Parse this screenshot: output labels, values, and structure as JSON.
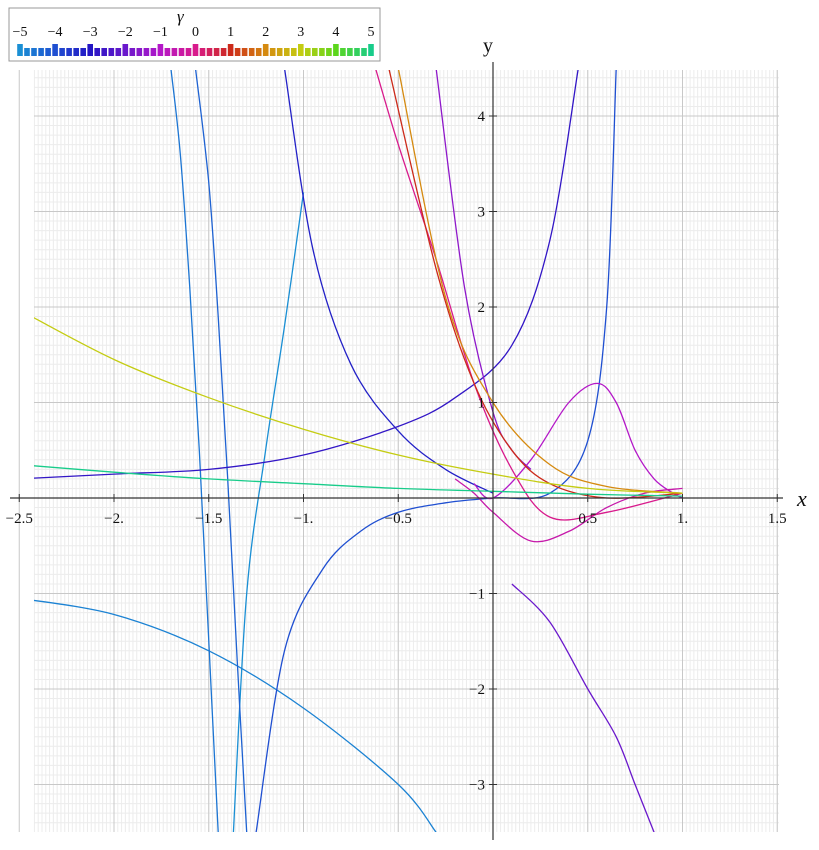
{
  "chart_data": {
    "type": "line",
    "xlabel": "x",
    "ylabel": "y",
    "xlim": [
      -2.5,
      1.55
    ],
    "ylim": [
      -3.5,
      4.5
    ],
    "x_ticks": [
      -2.5,
      -2.0,
      -1.5,
      -1.0,
      -0.5,
      0.5,
      1.0,
      1.5
    ],
    "x_tick_labels": [
      "-2.5",
      "-2.",
      "-1.5",
      "-1.",
      "-0.5",
      "0.5",
      "1.",
      "1.5"
    ],
    "y_ticks": [
      -3,
      -2,
      -1,
      1,
      2,
      3,
      4
    ],
    "y_tick_labels": [
      "-3",
      "-2",
      "-1",
      "1",
      "2",
      "3",
      "4"
    ],
    "grid": true,
    "legend": {
      "placement": "top-left",
      "title": "γ",
      "ticks": [
        -5,
        -4,
        -3,
        -2,
        -1,
        0,
        1,
        2,
        3,
        4,
        5
      ],
      "tick_labels": [
        "-5",
        "-4",
        "-3",
        "-2",
        "-1",
        "0",
        "1",
        "2",
        "3",
        "4",
        "5"
      ],
      "colors": [
        "#1a8fd4",
        "#1f4fd1",
        "#2416c4",
        "#6a18cc",
        "#b418c8",
        "#d81a8c",
        "#cc2a1a",
        "#d58a10",
        "#c4cc12",
        "#5cd61c",
        "#18cc8a"
      ]
    },
    "series": [
      {
        "gamma": -5.0,
        "x": [
          -1.37,
          -1.3,
          -1.2,
          -1.1,
          -1.0
        ],
        "y": [
          -3.5,
          -1.0,
          0.5,
          1.8,
          3.2
        ]
      },
      {
        "gamma": -4.8,
        "x": [
          -2.5,
          -2.0,
          -1.5,
          -1.0,
          -0.5,
          -0.3
        ],
        "y": [
          -1.05,
          -1.22,
          -1.6,
          -2.2,
          -3.0,
          -3.5
        ]
      },
      {
        "gamma": -4.6,
        "x": [
          -1.45,
          -1.5,
          -1.55,
          -1.6,
          -1.65,
          -1.7
        ],
        "y": [
          -3.5,
          -1.5,
          0.5,
          2.2,
          3.6,
          4.5
        ]
      },
      {
        "gamma": -4.3,
        "x": [
          -1.3,
          -1.35,
          -1.4,
          -1.45,
          -1.5,
          -1.57
        ],
        "y": [
          -3.5,
          -1.7,
          0.2,
          1.9,
          3.3,
          4.5
        ]
      },
      {
        "gamma": -4.0,
        "x": [
          -1.25,
          -1.1,
          -0.9,
          -0.7,
          -0.5,
          -0.25,
          0.0,
          0.3,
          0.5,
          0.6,
          0.65
        ],
        "y": [
          -3.5,
          -1.6,
          -0.75,
          -0.35,
          -0.15,
          -0.05,
          0.0,
          0.05,
          0.6,
          2.0,
          4.5
        ]
      },
      {
        "gamma": -3.2,
        "x": [
          -1.1,
          -0.95,
          -0.75,
          -0.5,
          -0.25,
          0.0
        ],
        "y": [
          4.5,
          2.6,
          1.4,
          0.7,
          0.3,
          0.05
        ]
      },
      {
        "gamma": -2.8,
        "x": [
          -2.5,
          -2.0,
          -1.5,
          -1.0,
          -0.5,
          -0.2,
          0.1,
          0.3,
          0.45
        ],
        "y": [
          0.2,
          0.25,
          0.3,
          0.45,
          0.75,
          1.05,
          1.6,
          2.7,
          4.5
        ]
      },
      {
        "gamma": -2.0,
        "x": [
          0.1,
          0.3,
          0.5,
          0.65,
          0.75,
          0.85
        ],
        "y": [
          -0.9,
          -1.3,
          -2.0,
          -2.5,
          -3.0,
          -3.5
        ]
      },
      {
        "gamma": -1.5,
        "x": [
          -0.3,
          -0.15,
          0.0,
          0.1,
          0.2
        ],
        "y": [
          4.5,
          2.2,
          0.9,
          0.5,
          0.3
        ]
      },
      {
        "gamma": -1.0,
        "x": [
          -0.1,
          0.0,
          0.2,
          0.4,
          0.55,
          0.65,
          0.75,
          0.85,
          0.95,
          1.0
        ],
        "y": [
          0.15,
          0.0,
          0.4,
          1.0,
          1.2,
          1.0,
          0.5,
          0.2,
          0.05,
          0.0
        ]
      },
      {
        "gamma": -0.5,
        "x": [
          -0.2,
          -0.1,
          0.0,
          0.2,
          0.4,
          0.6,
          0.8,
          1.0
        ],
        "y": [
          0.2,
          0.05,
          -0.15,
          -0.45,
          -0.35,
          -0.1,
          0.05,
          0.1
        ]
      },
      {
        "gamma": 0.0,
        "x": [
          -0.62,
          -0.5,
          -0.3,
          -0.1,
          0.1,
          0.3,
          0.6,
          1.0
        ],
        "y": [
          4.5,
          3.7,
          2.5,
          1.2,
          0.3,
          -0.2,
          -0.15,
          0.05
        ]
      },
      {
        "gamma": 1.0,
        "x": [
          -0.55,
          -0.3,
          -0.1,
          0.1,
          0.3,
          0.6,
          1.0
        ],
        "y": [
          4.5,
          2.4,
          1.2,
          0.5,
          0.15,
          0.0,
          0.05
        ]
      },
      {
        "gamma": 2.0,
        "x": [
          -0.5,
          -0.25,
          0.0,
          0.3,
          0.6,
          1.0
        ],
        "y": [
          4.5,
          2.1,
          1.0,
          0.35,
          0.12,
          0.05
        ]
      },
      {
        "gamma": 3.0,
        "x": [
          -2.5,
          -2.0,
          -1.5,
          -1.0,
          -0.5,
          0.0,
          0.5,
          1.0
        ],
        "y": [
          1.97,
          1.45,
          1.05,
          0.72,
          0.45,
          0.25,
          0.1,
          0.05
        ]
      },
      {
        "gamma": 5.0,
        "x": [
          -2.5,
          -2.0,
          -1.5,
          -1.0,
          -0.5,
          0.0,
          0.5,
          1.0
        ],
        "y": [
          0.35,
          0.27,
          0.2,
          0.15,
          0.1,
          0.07,
          0.04,
          0.02
        ]
      }
    ]
  }
}
